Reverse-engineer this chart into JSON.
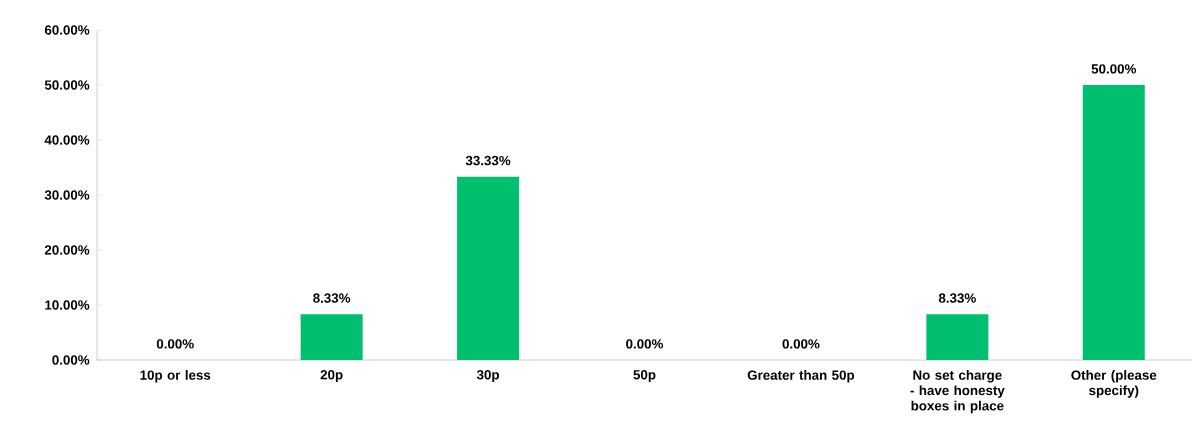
{
  "chart_data": {
    "type": "bar",
    "categories": [
      "10p or less",
      "20p",
      "30p",
      "50p",
      "Greater than 50p",
      "No set charge - have honesty boxes in place",
      "Other (please specify)"
    ],
    "values": [
      0,
      8.33,
      33.33,
      0,
      0,
      8.33,
      50
    ],
    "value_labels": [
      "0.00%",
      "8.33%",
      "33.33%",
      "0.00%",
      "0.00%",
      "8.33%",
      "50.00%"
    ],
    "color": "#00bf6f",
    "ylim": [
      0,
      60
    ],
    "yticks": [
      {
        "value": 0,
        "label": "0.00%"
      },
      {
        "value": 10,
        "label": "10.00%"
      },
      {
        "value": 20,
        "label": "20.00%"
      },
      {
        "value": 30,
        "label": "30.00%"
      },
      {
        "value": 40,
        "label": "40.00%"
      },
      {
        "value": 50,
        "label": "50.00%"
      },
      {
        "value": 60,
        "label": "60.00%"
      }
    ],
    "grid": false
  }
}
